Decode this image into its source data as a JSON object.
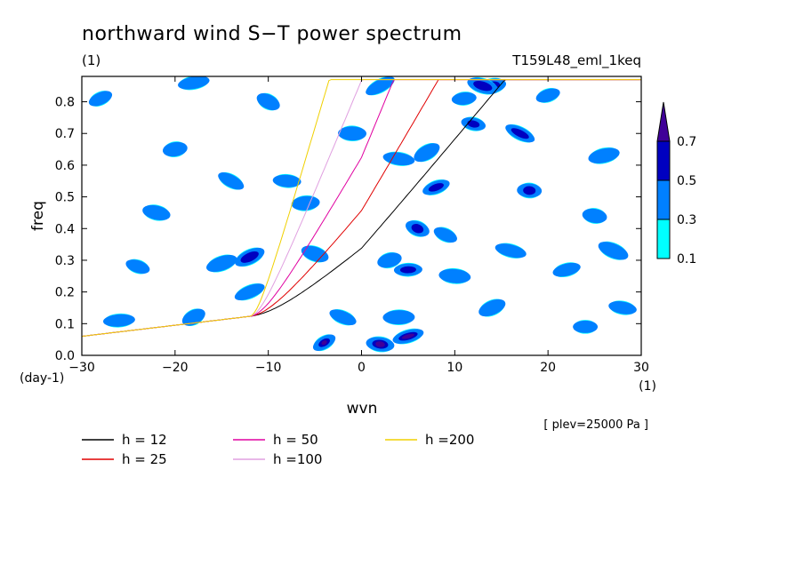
{
  "chart_data": {
    "type": "contour",
    "title": "northward wind S−T power spectrum",
    "subtitle_left": "(1)",
    "subtitle_right": "T159L48_eml_1keq",
    "xlabel": "wvn",
    "ylabel": "freq",
    "x_unit": "(1)",
    "y_unit": "(day-1)",
    "note": "[ plev=25000 Pa ]",
    "xlim": [
      -30,
      30
    ],
    "ylim": [
      0,
      0.88
    ],
    "xticks": [
      "−30",
      "−20",
      "−10",
      "0",
      "10",
      "20",
      "30"
    ],
    "xtick_values": [
      -30,
      -20,
      -10,
      0,
      10,
      20,
      30
    ],
    "yticks": [
      "0.0",
      "0.1",
      "0.2",
      "0.3",
      "0.4",
      "0.5",
      "0.6",
      "0.7",
      "0.8"
    ],
    "ytick_values": [
      0,
      0.1,
      0.2,
      0.3,
      0.4,
      0.5,
      0.6,
      0.7,
      0.8
    ],
    "colorbar": {
      "levels": [
        "0.1",
        "0.3",
        "0.5",
        "0.7"
      ],
      "colors": [
        "#00ffff",
        "#0080ff",
        "#0000c0",
        "#400098"
      ]
    },
    "contour_patches": [
      {
        "x": -4,
        "y": 0.04,
        "level": 3
      },
      {
        "x": 2,
        "y": 0.035,
        "level": 3
      },
      {
        "x": 5,
        "y": 0.06,
        "level": 3
      },
      {
        "x": 6,
        "y": 0.4,
        "level": 2
      },
      {
        "x": 5,
        "y": 0.27,
        "level": 2
      },
      {
        "x": -12,
        "y": 0.31,
        "level": 2
      },
      {
        "x": 12,
        "y": 0.73,
        "level": 2
      },
      {
        "x": 14,
        "y": 0.85,
        "level": 2
      },
      {
        "x": 17,
        "y": 0.7,
        "level": 2
      },
      {
        "x": 18,
        "y": 0.52,
        "level": 2
      },
      {
        "x": 8,
        "y": 0.53,
        "level": 2
      },
      {
        "x": 13,
        "y": 0.85,
        "level": 2
      },
      {
        "x": 11,
        "y": 0.81,
        "level": 1
      },
      {
        "x": 7,
        "y": 0.64,
        "level": 1
      },
      {
        "x": 4,
        "y": 0.62,
        "level": 1
      },
      {
        "x": 3,
        "y": 0.3,
        "level": 1
      },
      {
        "x": -2,
        "y": 0.12,
        "level": 1
      },
      {
        "x": 4,
        "y": 0.12,
        "level": 1
      },
      {
        "x": -28,
        "y": 0.81,
        "level": 1
      },
      {
        "x": -22,
        "y": 0.45,
        "level": 1
      },
      {
        "x": -18,
        "y": 0.86,
        "level": 1
      },
      {
        "x": -10,
        "y": 0.8,
        "level": 1
      },
      {
        "x": -8,
        "y": 0.55,
        "level": 1
      },
      {
        "x": -15,
        "y": 0.29,
        "level": 1
      },
      {
        "x": -24,
        "y": 0.28,
        "level": 1
      },
      {
        "x": -6,
        "y": 0.48,
        "level": 1
      },
      {
        "x": 2,
        "y": 0.85,
        "level": 1
      },
      {
        "x": 25,
        "y": 0.44,
        "level": 1
      },
      {
        "x": 22,
        "y": 0.27,
        "level": 1
      },
      {
        "x": 27,
        "y": 0.33,
        "level": 1
      },
      {
        "x": 24,
        "y": 0.09,
        "level": 1
      },
      {
        "x": 14,
        "y": 0.15,
        "level": 1
      },
      {
        "x": 16,
        "y": 0.33,
        "level": 1
      },
      {
        "x": -20,
        "y": 0.65,
        "level": 1
      },
      {
        "x": -14,
        "y": 0.55,
        "level": 1
      },
      {
        "x": 10,
        "y": 0.25,
        "level": 1
      },
      {
        "x": 20,
        "y": 0.82,
        "level": 1
      },
      {
        "x": -5,
        "y": 0.32,
        "level": 1
      },
      {
        "x": -26,
        "y": 0.11,
        "level": 1
      },
      {
        "x": -18,
        "y": 0.12,
        "level": 1
      },
      {
        "x": 28,
        "y": 0.15,
        "level": 1
      },
      {
        "x": 26,
        "y": 0.63,
        "level": 1
      },
      {
        "x": 9,
        "y": 0.38,
        "level": 1
      },
      {
        "x": -1,
        "y": 0.7,
        "level": 1
      },
      {
        "x": -12,
        "y": 0.2,
        "level": 1
      }
    ],
    "series": [
      {
        "name": "h = 12",
        "h": 12,
        "color": "#000000"
      },
      {
        "name": "h = 25",
        "h": 25,
        "color": "#e00000"
      },
      {
        "name": "h = 50",
        "h": 50,
        "color": "#e000a0"
      },
      {
        "name": "h =100",
        "h": 100,
        "color": "#e0a0e0"
      },
      {
        "name": "h =200",
        "h": 200,
        "color": "#f0d000"
      }
    ]
  }
}
